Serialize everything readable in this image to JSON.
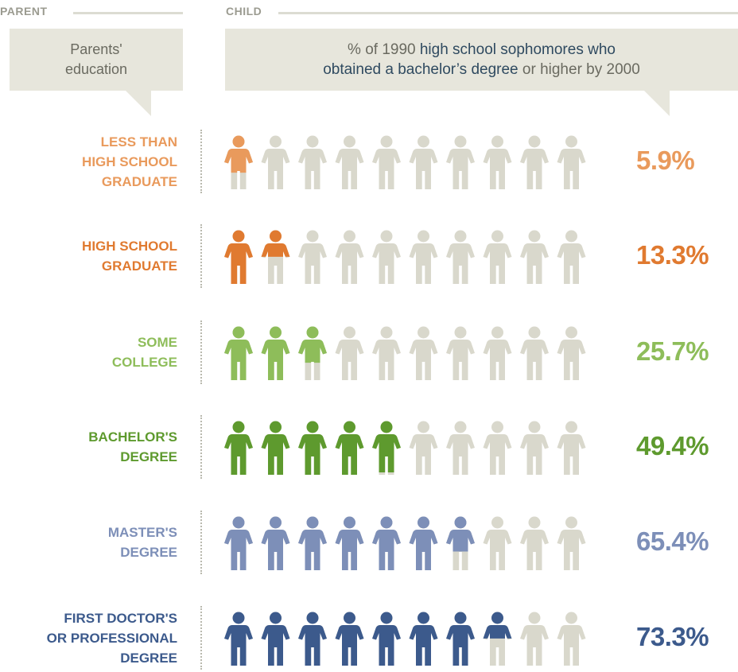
{
  "header": {
    "parent_label": "PARENT",
    "child_label": "CHILD",
    "parent_bubble": [
      "Parents'",
      "education"
    ],
    "child_bubble": {
      "line1_plain": "% of 1990 ",
      "line1_bold": "high school sophomores who",
      "line2_bold": "obtained a bachelor’s degree",
      "line2_plain": " or higher by 2000"
    }
  },
  "colors": {
    "inactive": "#d9d8cc",
    "less_than_hs": "#e99a5c",
    "high_school": "#e07a30",
    "some_college": "#8ebd5a",
    "bachelors": "#5e9a2e",
    "masters": "#7d8fb8",
    "doctorate": "#3c5a8c"
  },
  "chart_data": {
    "type": "bar",
    "title": "% of 1990 high school sophomores who obtained a bachelor’s degree or higher by 2000",
    "xlabel": "Parents' education",
    "ylabel": "",
    "units_per_icon": 10,
    "icon_count": 10,
    "ylim": [
      0,
      100
    ],
    "categories": [
      [
        "LESS THAN",
        "HIGH SCHOOL",
        "GRADUATE"
      ],
      [
        "HIGH SCHOOL",
        "GRADUATE"
      ],
      [
        "SOME",
        "COLLEGE"
      ],
      [
        "BACHELOR'S",
        "DEGREE"
      ],
      [
        "MASTER'S",
        "DEGREE"
      ],
      [
        "FIRST DOCTOR'S",
        "OR PROFESSIONAL",
        "DEGREE"
      ]
    ],
    "values": [
      5.9,
      13.3,
      25.7,
      49.4,
      65.4,
      73.3
    ],
    "labels": [
      "5.9%",
      "13.3%",
      "25.7%",
      "49.4%",
      "65.4%",
      "73.3%"
    ],
    "color_keys": [
      "less_than_hs",
      "high_school",
      "some_college",
      "bachelors",
      "masters",
      "doctorate"
    ]
  }
}
